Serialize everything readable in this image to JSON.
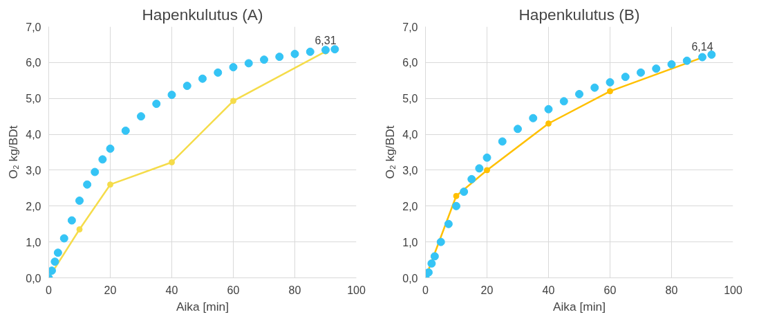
{
  "chart_data": [
    {
      "type": "line",
      "title": "Hapenkulutus (A)",
      "xlabel": "Aika [min]",
      "ylabel": "O₂ kg/BDt",
      "xlim": [
        0,
        100
      ],
      "ylim": [
        0,
        7
      ],
      "xticks": [
        0,
        20,
        40,
        60,
        80,
        100
      ],
      "yticks": [
        {
          "value": 0,
          "label": "0,0"
        },
        {
          "value": 1,
          "label": "1,0"
        },
        {
          "value": 2,
          "label": "2,0"
        },
        {
          "value": 3,
          "label": "3,0"
        },
        {
          "value": 4,
          "label": "4,0"
        },
        {
          "value": 5,
          "label": "5,0"
        },
        {
          "value": 6,
          "label": "6,0"
        },
        {
          "value": 7,
          "label": "7,0"
        }
      ],
      "grid": true,
      "series": [
        {
          "marker": "circle",
          "color": "#f5dc4a",
          "x": [
            0,
            10,
            20,
            40,
            60,
            90
          ],
          "values": [
            0,
            1.35,
            2.6,
            3.22,
            4.93,
            6.31
          ],
          "value_labels": [
            null,
            null,
            null,
            null,
            null,
            "6,31"
          ]
        },
        {
          "type": "scatter",
          "marker": "circle",
          "color": "#35c4f5",
          "x": [
            0,
            1,
            2,
            3,
            5,
            7.5,
            10,
            12.5,
            15,
            17.5,
            20,
            25,
            30,
            35,
            40,
            45,
            50,
            55,
            60,
            65,
            70,
            75,
            80,
            85,
            90,
            93
          ],
          "values": [
            0,
            0.2,
            0.45,
            0.7,
            1.1,
            1.6,
            2.15,
            2.6,
            2.95,
            3.3,
            3.6,
            4.1,
            4.5,
            4.85,
            5.1,
            5.35,
            5.55,
            5.72,
            5.87,
            5.98,
            6.08,
            6.16,
            6.24,
            6.3,
            6.35,
            6.37
          ]
        }
      ]
    },
    {
      "type": "line",
      "title": "Hapenkulutus (B)",
      "xlabel": "Aika [min]",
      "ylabel": "O₂ kg/BDt",
      "xlim": [
        0,
        100
      ],
      "ylim": [
        0,
        7
      ],
      "xticks": [
        0,
        20,
        40,
        60,
        80,
        100
      ],
      "yticks": [
        {
          "value": 0,
          "label": "0,0"
        },
        {
          "value": 1,
          "label": "1,0"
        },
        {
          "value": 2,
          "label": "2,0"
        },
        {
          "value": 3,
          "label": "3,0"
        },
        {
          "value": 4,
          "label": "4,0"
        },
        {
          "value": 5,
          "label": "5,0"
        },
        {
          "value": 6,
          "label": "6,0"
        },
        {
          "value": 7,
          "label": "7,0"
        }
      ],
      "grid": true,
      "series": [
        {
          "marker": "circle",
          "color": "#ffc000",
          "x": [
            0,
            10,
            20,
            40,
            60,
            90
          ],
          "values": [
            0,
            2.28,
            3.0,
            4.3,
            5.2,
            6.14
          ],
          "value_labels": [
            null,
            null,
            null,
            null,
            null,
            "6,14"
          ]
        },
        {
          "type": "scatter",
          "marker": "circle",
          "color": "#35c4f5",
          "x": [
            0,
            1,
            2,
            3,
            5,
            7.5,
            10,
            12.5,
            15,
            17.5,
            20,
            25,
            30,
            35,
            40,
            45,
            50,
            55,
            60,
            65,
            70,
            75,
            80,
            85,
            90,
            93
          ],
          "values": [
            0,
            0.15,
            0.4,
            0.6,
            1.0,
            1.5,
            2.0,
            2.4,
            2.75,
            3.05,
            3.35,
            3.8,
            4.15,
            4.45,
            4.7,
            4.92,
            5.12,
            5.3,
            5.45,
            5.6,
            5.72,
            5.83,
            5.95,
            6.05,
            6.15,
            6.22
          ]
        }
      ]
    }
  ]
}
